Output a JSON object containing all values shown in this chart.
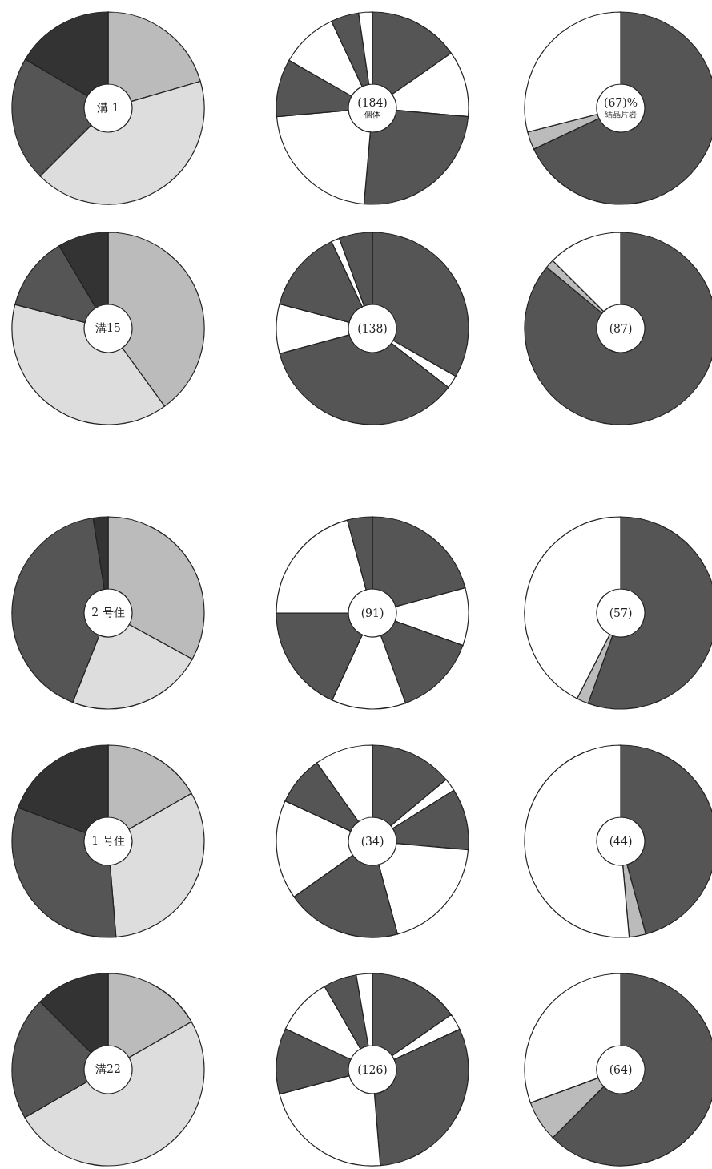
{
  "chart_data": [
    {
      "type": "donut",
      "title": "溝 1",
      "categories": [
        null,
        null,
        null,
        null
      ],
      "values": [
        20.5,
        42,
        21,
        16.5
      ],
      "colors": [
        "#bbbbbb",
        "#dddddd",
        "#555555",
        "#333333"
      ]
    },
    {
      "type": "donut",
      "title": "(184)",
      "subtitle": "個体",
      "categories": [
        null,
        null,
        null,
        null,
        null,
        null,
        null,
        null
      ],
      "values": [
        15.3,
        11.1,
        25,
        22.2,
        9.7,
        9.7,
        4.7,
        2.3
      ],
      "colors": [
        "#555555",
        "#ffffff",
        "#555555",
        "#ffffff",
        "#555555",
        "#ffffff",
        "#555555",
        "#ffffff"
      ]
    },
    {
      "type": "donut",
      "title": "(67)%",
      "subtitle": "結晶片岩",
      "categories": [
        null,
        null,
        null
      ],
      "values": [
        68,
        3,
        29
      ],
      "colors": [
        "#555555",
        "#bbbbbb",
        "#ffffff"
      ]
    },
    {
      "type": "donut",
      "title": "溝15",
      "categories": [
        null,
        null,
        null,
        null
      ],
      "values": [
        40,
        39,
        12.5,
        8.5
      ],
      "colors": [
        "#bbbbbb",
        "#dddddd",
        "#555555",
        "#333333"
      ]
    },
    {
      "type": "donut",
      "title": "(138)",
      "categories": [
        null,
        null,
        null,
        null,
        null,
        null,
        null
      ],
      "values": [
        33.3,
        2.2,
        35.3,
        8.3,
        13.9,
        1.4,
        5.6
      ],
      "colors": [
        "#555555",
        "#ffffff",
        "#555555",
        "#ffffff",
        "#555555",
        "#ffffff",
        "#555555"
      ]
    },
    {
      "type": "donut",
      "title": "(87)",
      "categories": [
        null,
        null,
        null
      ],
      "values": [
        86,
        1.5,
        12.5
      ],
      "colors": [
        "#555555",
        "#bbbbbb",
        "#ffffff"
      ]
    },
    {
      "type": "donut",
      "title": "2 号住",
      "categories": [
        null,
        null,
        null,
        null
      ],
      "values": [
        33,
        23,
        41.5,
        2.5
      ],
      "colors": [
        "#bbbbbb",
        "#dddddd",
        "#555555",
        "#333333"
      ]
    },
    {
      "type": "donut",
      "title": "(91)",
      "categories": [
        null,
        null,
        null,
        null,
        null,
        null,
        null
      ],
      "values": [
        20.8,
        9.7,
        13.9,
        12.5,
        18.1,
        20.8,
        4.2
      ],
      "colors": [
        "#555555",
        "#ffffff",
        "#555555",
        "#ffffff",
        "#555555",
        "#ffffff",
        "#555555"
      ]
    },
    {
      "type": "donut",
      "title": "(57)",
      "categories": [
        null,
        null,
        null
      ],
      "values": [
        55.5,
        2,
        42.5
      ],
      "colors": [
        "#555555",
        "#bbbbbb",
        "#ffffff"
      ]
    },
    {
      "type": "donut",
      "title": "1 号住",
      "categories": [
        null,
        null,
        null,
        null
      ],
      "values": [
        16.7,
        32,
        32,
        19.3
      ],
      "colors": [
        "#bbbbbb",
        "#dddddd",
        "#555555",
        "#333333"
      ]
    },
    {
      "type": "donut",
      "title": "(34)",
      "categories": [
        null,
        null,
        null,
        null,
        null,
        null,
        null,
        null
      ],
      "values": [
        13.9,
        2.2,
        10.3,
        19.4,
        19.4,
        16.7,
        8.3,
        9.8
      ],
      "colors": [
        "#555555",
        "#ffffff",
        "#555555",
        "#ffffff",
        "#555555",
        "#ffffff",
        "#555555",
        "#ffffff"
      ]
    },
    {
      "type": "donut",
      "title": "(44)",
      "categories": [
        null,
        null,
        null
      ],
      "values": [
        45.8,
        2.8,
        51.4
      ],
      "colors": [
        "#555555",
        "#bbbbbb",
        "#ffffff"
      ]
    },
    {
      "type": "donut",
      "title": "溝22",
      "categories": [
        null,
        null,
        null,
        null
      ],
      "values": [
        16.7,
        50,
        20.8,
        12.5
      ],
      "colors": [
        "#bbbbbb",
        "#dddddd",
        "#555555",
        "#333333"
      ]
    },
    {
      "type": "donut",
      "title": "(126)",
      "categories": [
        null,
        null,
        null,
        null,
        null,
        null,
        null,
        null
      ],
      "values": [
        15.3,
        2.8,
        30.6,
        22.2,
        11.1,
        9.7,
        5.6,
        2.7
      ],
      "colors": [
        "#555555",
        "#ffffff",
        "#555555",
        "#ffffff",
        "#555555",
        "#ffffff",
        "#555555",
        "#ffffff"
      ]
    },
    {
      "type": "donut",
      "title": "(64)",
      "categories": [
        null,
        null,
        null
      ],
      "values": [
        62.5,
        6.9,
        30.6
      ],
      "colors": [
        "#555555",
        "#bbbbbb",
        "#ffffff"
      ]
    }
  ]
}
